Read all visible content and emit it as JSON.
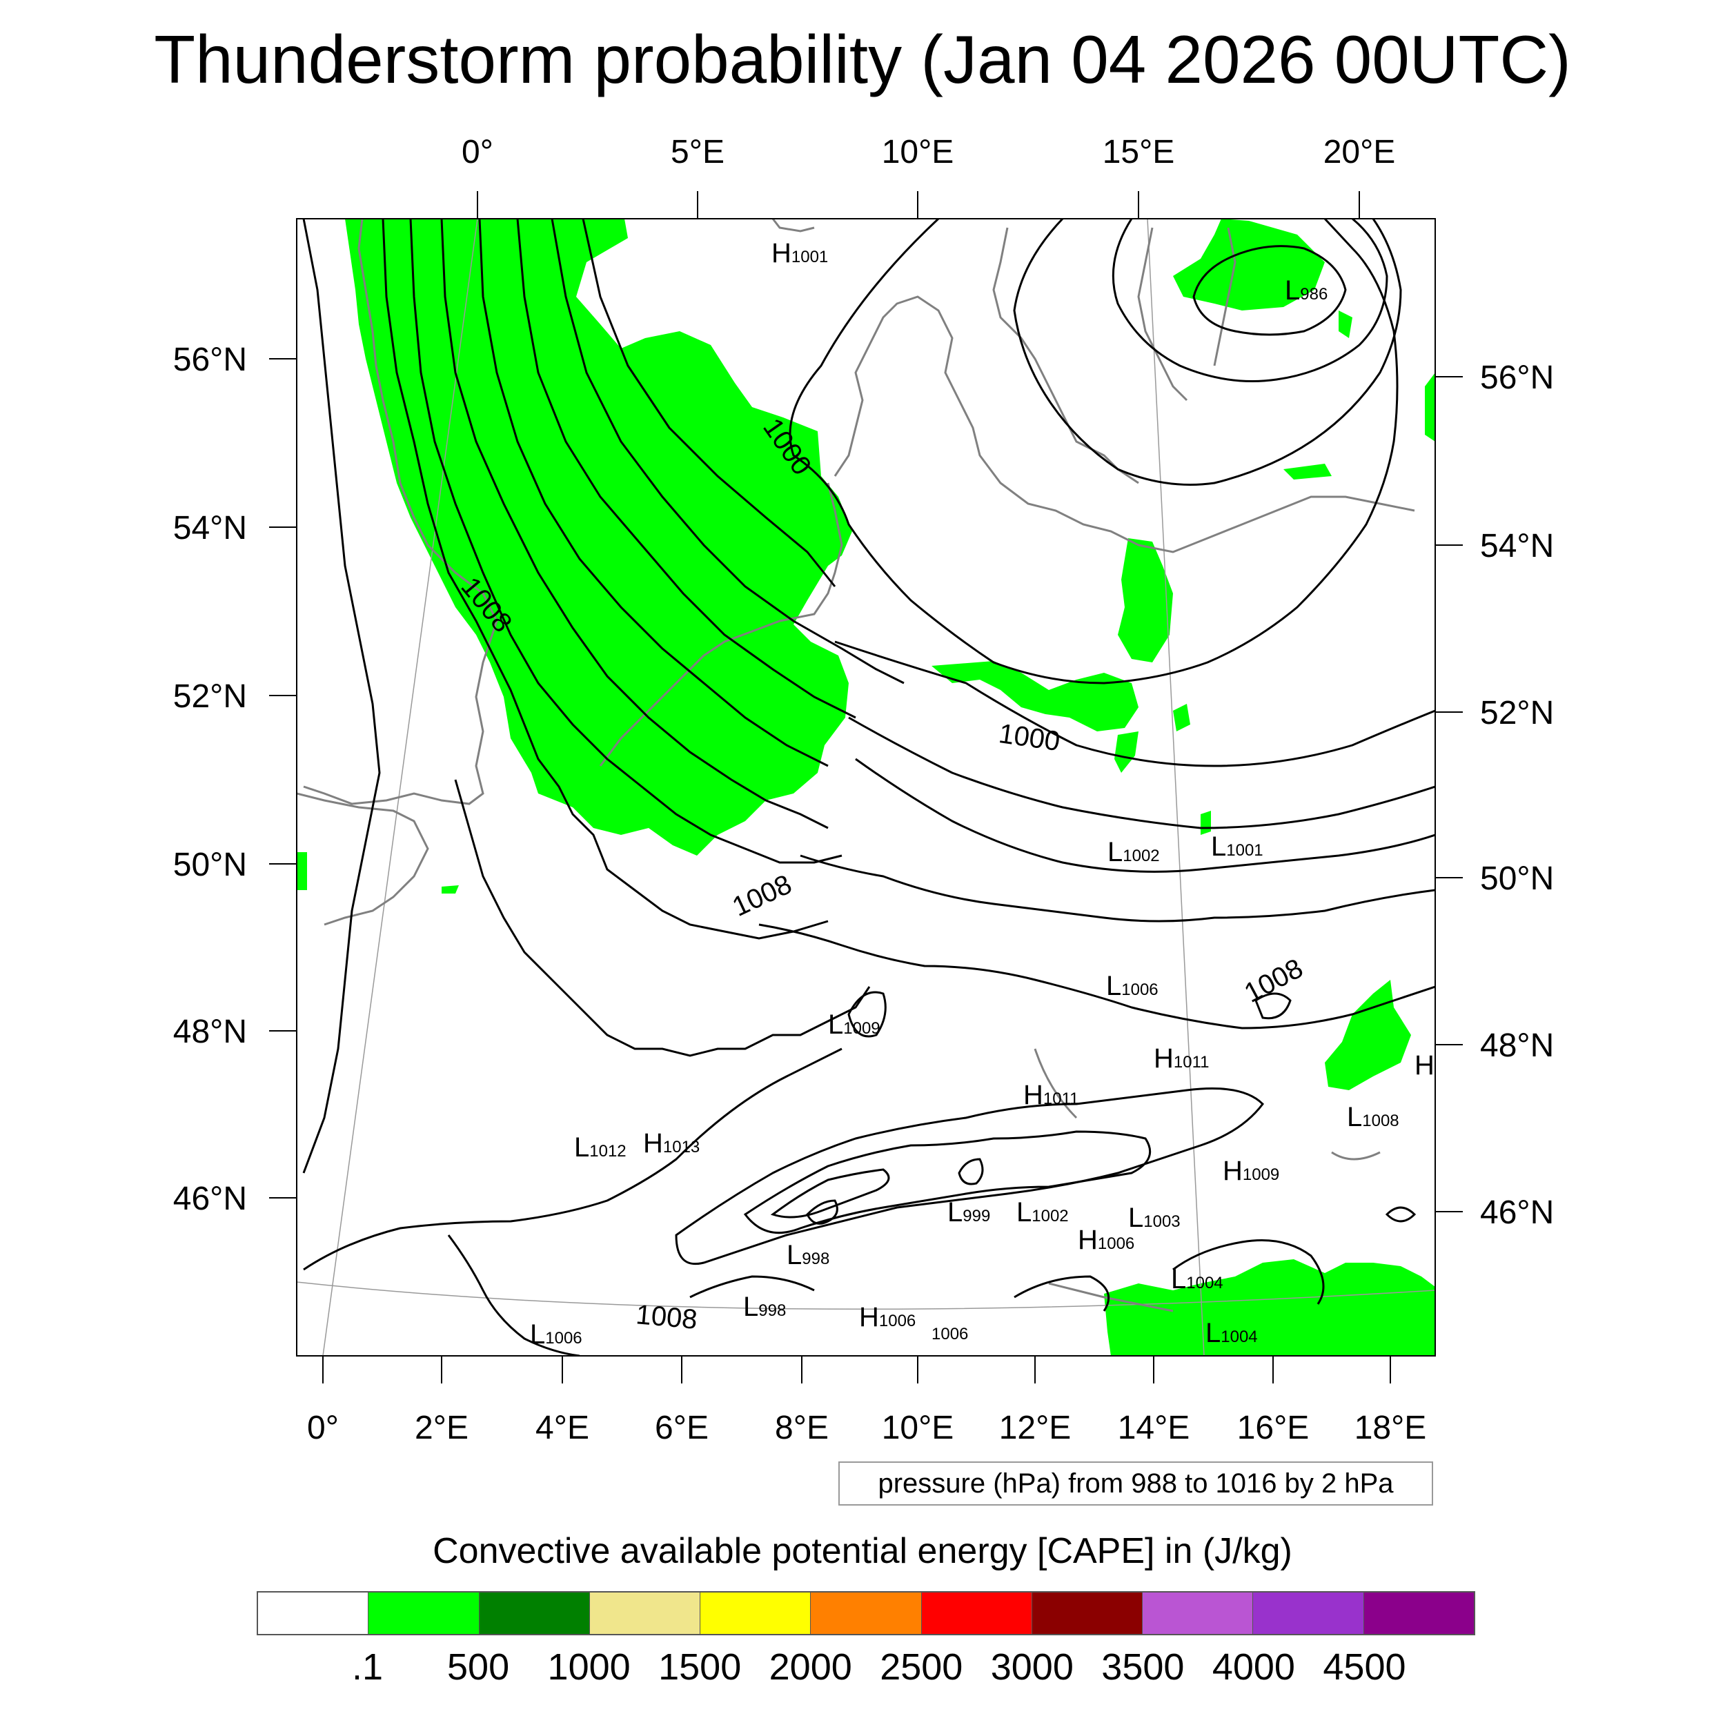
{
  "title": "Thunderstorm probability (Jan 04 2026 00UTC)",
  "map": {
    "top_lon_labels": [
      "0°",
      "5°E",
      "10°E",
      "15°E",
      "20°E"
    ],
    "bottom_lon_labels": [
      "0°",
      "2°E",
      "4°E",
      "6°E",
      "8°E",
      "10°E",
      "12°E",
      "14°E",
      "16°E",
      "18°E"
    ],
    "left_lat_labels": [
      "56°N",
      "54°N",
      "52°N",
      "50°N",
      "48°N",
      "46°N"
    ],
    "right_lat_labels": [
      "56°N",
      "54°N",
      "52°N",
      "50°N",
      "48°N",
      "46°N"
    ],
    "contour_labels": [
      "1000",
      "1008",
      "1000",
      "1008",
      "1008",
      "1008"
    ],
    "pressure_centers": [
      {
        "type": "H",
        "value": "1001"
      },
      {
        "type": "L",
        "value": "986"
      },
      {
        "type": "L",
        "value": "1002"
      },
      {
        "type": "L",
        "value": "1001"
      },
      {
        "type": "L",
        "value": "1006"
      },
      {
        "type": "L",
        "value": "1009"
      },
      {
        "type": "H",
        "value": "1011"
      },
      {
        "type": "H",
        "value": "1011"
      },
      {
        "type": "H",
        "value": ""
      },
      {
        "type": "L",
        "value": "1008"
      },
      {
        "type": "L",
        "value": "1012"
      },
      {
        "type": "H",
        "value": "1013"
      },
      {
        "type": "H",
        "value": "1009"
      },
      {
        "type": "L",
        "value": "999"
      },
      {
        "type": "L",
        "value": "1002"
      },
      {
        "type": "L",
        "value": "1003"
      },
      {
        "type": "H",
        "value": "1006"
      },
      {
        "type": "L",
        "value": "998"
      },
      {
        "type": "L",
        "value": "1004"
      },
      {
        "type": "L",
        "value": "998"
      },
      {
        "type": "H",
        "value": "1006"
      },
      {
        "type": "",
        "value": "1006"
      },
      {
        "type": "L",
        "value": "1004"
      },
      {
        "type": "L",
        "value": "1006"
      }
    ],
    "colors": {
      "cape_low": "#00ff00",
      "contour": "#000000",
      "coast": "#808080"
    }
  },
  "info_box": "pressure (hPa) from 988 to 1016 by 2 hPa",
  "colorbar": {
    "title": "Convective available potential energy [CAPE] in (J/kg)",
    "colors": [
      "#ffffff",
      "#00ff00",
      "#008000",
      "#f0e68c",
      "#ffff00",
      "#ff8000",
      "#ff0000",
      "#8b0000",
      "#ba55d3",
      "#9932cc",
      "#8b008b"
    ],
    "tick_labels": [
      ".1",
      "500",
      "1000",
      "1500",
      "2000",
      "2500",
      "3000",
      "3500",
      "4000",
      "4500"
    ]
  }
}
